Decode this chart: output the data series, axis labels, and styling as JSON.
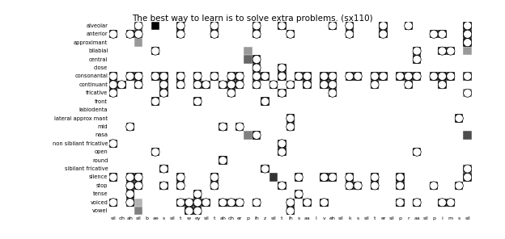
{
  "title": "The best way to learn is to solve extra problems. (sx110)",
  "rows": [
    "alveolar",
    "anterior",
    "approximant",
    "bilabial",
    "central",
    "close",
    "consonantal",
    "continuant",
    "fricative",
    "front",
    "labiodenta",
    "lateral approx mant",
    "mid",
    "nasa",
    "non sibilant fricative",
    "open",
    "round",
    "sibilant fricative",
    "silence",
    "stop",
    "tense",
    "voiced",
    "vowel"
  ],
  "cols": [
    "sil",
    "dh",
    "ah",
    "sil",
    "b",
    "ae",
    "s",
    "sil",
    "t",
    "w",
    "ey",
    "sil",
    "t",
    "ah",
    "dh",
    "er",
    "p",
    "ih",
    "z",
    "sil",
    "t",
    "ih",
    "s",
    "aa",
    "l",
    "v",
    "eh",
    "sil",
    "k",
    "s",
    "sil",
    "t",
    "er",
    "sil",
    "p",
    "r",
    "aa",
    "sil",
    "p",
    "i",
    "m",
    "s",
    "sil"
  ],
  "grid_data": [
    [
      0,
      0,
      0,
      0.7,
      0,
      1,
      0,
      0,
      1,
      0,
      0,
      0,
      1,
      0,
      0,
      0,
      0,
      1,
      0,
      0,
      1,
      0,
      0,
      0,
      0,
      0,
      1,
      0,
      1,
      0,
      0,
      0,
      1,
      0,
      0,
      1,
      0,
      0,
      0,
      0,
      0,
      0,
      1
    ],
    [
      1,
      0,
      1,
      0.9,
      0,
      0,
      0,
      0,
      1,
      0,
      0,
      0,
      1,
      0,
      0,
      0,
      0,
      1,
      0,
      0,
      0,
      1,
      0,
      0,
      0,
      0,
      0,
      0,
      1,
      0,
      0,
      0,
      1,
      0,
      0,
      0,
      0,
      0,
      1,
      1,
      0,
      0,
      1
    ],
    [
      0,
      0,
      0,
      0.4,
      0,
      0,
      0,
      0,
      0,
      0,
      0,
      0,
      0,
      0,
      0,
      0,
      0,
      0,
      0,
      0,
      0,
      0,
      0,
      0,
      0,
      0,
      0,
      0,
      0,
      0,
      0,
      0,
      0,
      0,
      0,
      0,
      0,
      0,
      0,
      0,
      0,
      0,
      1
    ],
    [
      0,
      0,
      0,
      0,
      0,
      1,
      0,
      0,
      0,
      0,
      0,
      0,
      0,
      0,
      0,
      0,
      0.4,
      0,
      0,
      0,
      0,
      0,
      0,
      0,
      0,
      0,
      0,
      0,
      0,
      0,
      0,
      0,
      0,
      0,
      0,
      0,
      1,
      0,
      0,
      1,
      1,
      0,
      0.4
    ],
    [
      0,
      0,
      0,
      0,
      0,
      0,
      0,
      0,
      0,
      0,
      0,
      0,
      0,
      0,
      0,
      0,
      0.6,
      1,
      0,
      0,
      0,
      0,
      0,
      0,
      0,
      0,
      0,
      0,
      0,
      0,
      0,
      0,
      0,
      0,
      0,
      0,
      1,
      0,
      0,
      0,
      0,
      0,
      0
    ],
    [
      0,
      0,
      0,
      0,
      0,
      0,
      0,
      0,
      0,
      0,
      0,
      0,
      0,
      0,
      0,
      0,
      0,
      1,
      0,
      0,
      1,
      0,
      0,
      0,
      0,
      0,
      0,
      0,
      0,
      0,
      0,
      0,
      0,
      0,
      0,
      0,
      0,
      0,
      0,
      0,
      0,
      0,
      0
    ],
    [
      1,
      0,
      1,
      1,
      0,
      1,
      1,
      0,
      1,
      0,
      1,
      0,
      1,
      0,
      1,
      1,
      0,
      1,
      1,
      0,
      1,
      0,
      1,
      1,
      0,
      1,
      1,
      0,
      1,
      1,
      0,
      1,
      1,
      0,
      1,
      1,
      1,
      0,
      1,
      1,
      1,
      0,
      0.8
    ],
    [
      1,
      1,
      0,
      1,
      0,
      0,
      1,
      0,
      1,
      0,
      1,
      1,
      0,
      1,
      1,
      1,
      0,
      1,
      0,
      1,
      0,
      1,
      0,
      1,
      0,
      1,
      1,
      0,
      0,
      0,
      0,
      1,
      0,
      0,
      0,
      1,
      0,
      0,
      0,
      1,
      0,
      0,
      0
    ],
    [
      1,
      0,
      0,
      0,
      0,
      0,
      1,
      0,
      0,
      0,
      0,
      0,
      0,
      0,
      1,
      0,
      0,
      0,
      0,
      0,
      1,
      0,
      0,
      0,
      0,
      0,
      1,
      0,
      0,
      0,
      0,
      0,
      0,
      0,
      0,
      0,
      0,
      0,
      0,
      0,
      0,
      0,
      0.5
    ],
    [
      0,
      0,
      0,
      0,
      0,
      1,
      0,
      0,
      0,
      0,
      1,
      0,
      0,
      0,
      0,
      0,
      0,
      0,
      1,
      0,
      0,
      0,
      0,
      0,
      0,
      0,
      0,
      0,
      0,
      0,
      0,
      0,
      0,
      0,
      0,
      0,
      0,
      0,
      0,
      0,
      0,
      0,
      0
    ],
    [
      0,
      0,
      0,
      0,
      0,
      0,
      0,
      0,
      0,
      0,
      0,
      0,
      0,
      0,
      0,
      0,
      0,
      0,
      0,
      0,
      0,
      0,
      0,
      0,
      0,
      0,
      0,
      0,
      0,
      0,
      0,
      0,
      0,
      0,
      0,
      0,
      0,
      0,
      0,
      0,
      0,
      0,
      0
    ],
    [
      0,
      0,
      0,
      0,
      0,
      0,
      0,
      0,
      0,
      0,
      0,
      0,
      0,
      0,
      0,
      0,
      0,
      0,
      0,
      0,
      0,
      1,
      0,
      0,
      0,
      0,
      0,
      0,
      0,
      0,
      0,
      0,
      0,
      0,
      0,
      0,
      0,
      0,
      0,
      0,
      0,
      1,
      0
    ],
    [
      0,
      0,
      1,
      0,
      0,
      0,
      0,
      0,
      0,
      0,
      0,
      0,
      0,
      1,
      0,
      1,
      0,
      0,
      0,
      0,
      0,
      1,
      0,
      0,
      0,
      0,
      0,
      0,
      0,
      0,
      0,
      0,
      0,
      0,
      0,
      0,
      0,
      0,
      0,
      0,
      0,
      0,
      0
    ],
    [
      0,
      0,
      0,
      0,
      0,
      0,
      0,
      0,
      0,
      0,
      0,
      0,
      0,
      0,
      0,
      0,
      0.5,
      1,
      0,
      0,
      0,
      0,
      0,
      0,
      0,
      0,
      0,
      0,
      0,
      0,
      0,
      0,
      0,
      0,
      0,
      0,
      0,
      0,
      0,
      0,
      0,
      0,
      0.7
    ],
    [
      1,
      0,
      0,
      0,
      0,
      0,
      0,
      0,
      0,
      0,
      0,
      0,
      0,
      0,
      0,
      0,
      0,
      0,
      0,
      0,
      1,
      0,
      0,
      0,
      0,
      0,
      0,
      0,
      0,
      0,
      0,
      0,
      0,
      0,
      0,
      0,
      0,
      0,
      0,
      0,
      0,
      0,
      0
    ],
    [
      0,
      0,
      0,
      0,
      0,
      1,
      0,
      0,
      0,
      0,
      0,
      0,
      0,
      0,
      0,
      0,
      0,
      0,
      0,
      0,
      1,
      0,
      0,
      0,
      0,
      0,
      0,
      0,
      0,
      0,
      0,
      0,
      0,
      0,
      0,
      0,
      1,
      0,
      0,
      0,
      0,
      0,
      0
    ],
    [
      0,
      0,
      0,
      0,
      0,
      0,
      0,
      0,
      0,
      0,
      0,
      0,
      0,
      1,
      0,
      0,
      0,
      0,
      0,
      0,
      0,
      0,
      0,
      0,
      0,
      0,
      0,
      0,
      0,
      0,
      0,
      0,
      0,
      0,
      0,
      0,
      0,
      0,
      0,
      0,
      0,
      0,
      0
    ],
    [
      0,
      0,
      0,
      0,
      0,
      0,
      1,
      0,
      0,
      0,
      0,
      0,
      0,
      0,
      0,
      0,
      0,
      0,
      1,
      0,
      0,
      0,
      0,
      0,
      0,
      0,
      0,
      0,
      0,
      0,
      0,
      0,
      0,
      0,
      0,
      0,
      0,
      0,
      0,
      0,
      0,
      0,
      0.8
    ],
    [
      1,
      0,
      1,
      1,
      0,
      0,
      0,
      0,
      1,
      0,
      0,
      0,
      1,
      0,
      0,
      0,
      0,
      0,
      0,
      0.8,
      0,
      0,
      1,
      0,
      0,
      1,
      1,
      0,
      1,
      0,
      0,
      1,
      0,
      0,
      1,
      0,
      0,
      0,
      0,
      0,
      0,
      0,
      0.9
    ],
    [
      0,
      0,
      1,
      1,
      0,
      0,
      1,
      0,
      1,
      0,
      0,
      0,
      1,
      0,
      0,
      0,
      0,
      0,
      0,
      0,
      1,
      0,
      0,
      0,
      0,
      0,
      0,
      0,
      1,
      1,
      0,
      1,
      0,
      0,
      1,
      0,
      0,
      0,
      1,
      0,
      0,
      1,
      0
    ],
    [
      0,
      0,
      1,
      0,
      0,
      0,
      0,
      0,
      0,
      0,
      1,
      0,
      0,
      0,
      0,
      0,
      0,
      0,
      0,
      0,
      0,
      0,
      1,
      0,
      0,
      0,
      0,
      0,
      0,
      0,
      0,
      0,
      0,
      0,
      0,
      0,
      0,
      0,
      0,
      0,
      0,
      0,
      0
    ],
    [
      1,
      0,
      1,
      0.3,
      0,
      0,
      0,
      0,
      1,
      1,
      1,
      1,
      0,
      1,
      1,
      1,
      0,
      1,
      0,
      0,
      0,
      1,
      0,
      1,
      0,
      1,
      0,
      0,
      0,
      0,
      0,
      0,
      0,
      0,
      1,
      0,
      1,
      0,
      0,
      1,
      1,
      0,
      0
    ],
    [
      0,
      0,
      0,
      0.5,
      0,
      0,
      0,
      0,
      0,
      1,
      1,
      0,
      0,
      0,
      0,
      0,
      0,
      0,
      0,
      0,
      0,
      1,
      0,
      0,
      0,
      0,
      0,
      0,
      0,
      0,
      0,
      0,
      0,
      0,
      0,
      0,
      0,
      0,
      0,
      0,
      0,
      0,
      0
    ]
  ],
  "circle_data": [
    [
      0,
      0,
      0,
      1,
      0,
      0,
      0,
      0,
      1,
      0,
      0,
      0,
      1,
      0,
      0,
      0,
      0,
      1,
      0,
      0,
      1,
      0,
      0,
      0,
      0,
      0,
      1,
      0,
      1,
      0,
      0,
      0,
      1,
      0,
      0,
      1,
      0,
      0,
      0,
      0,
      0,
      0,
      1
    ],
    [
      1,
      0,
      1,
      1,
      0,
      0,
      0,
      0,
      1,
      0,
      0,
      0,
      1,
      0,
      0,
      0,
      0,
      1,
      0,
      0,
      0,
      1,
      0,
      0,
      0,
      0,
      0,
      0,
      1,
      0,
      0,
      0,
      1,
      0,
      0,
      0,
      0,
      0,
      1,
      1,
      0,
      0,
      1
    ],
    [
      0,
      0,
      0,
      0,
      0,
      0,
      0,
      0,
      0,
      0,
      0,
      0,
      0,
      0,
      0,
      0,
      0,
      0,
      0,
      0,
      0,
      0,
      0,
      0,
      0,
      0,
      0,
      0,
      0,
      0,
      0,
      0,
      0,
      0,
      0,
      0,
      0,
      0,
      0,
      0,
      0,
      0,
      1
    ],
    [
      0,
      0,
      0,
      0,
      0,
      1,
      0,
      0,
      0,
      0,
      0,
      0,
      0,
      0,
      0,
      0,
      0,
      0,
      0,
      0,
      0,
      0,
      0,
      0,
      0,
      0,
      0,
      0,
      0,
      0,
      0,
      0,
      0,
      0,
      0,
      0,
      1,
      0,
      0,
      1,
      1,
      0,
      0
    ],
    [
      0,
      0,
      0,
      0,
      0,
      0,
      0,
      0,
      0,
      0,
      0,
      0,
      0,
      0,
      0,
      0,
      0,
      1,
      0,
      0,
      0,
      0,
      0,
      0,
      0,
      0,
      0,
      0,
      0,
      0,
      0,
      0,
      0,
      0,
      0,
      0,
      1,
      0,
      0,
      0,
      0,
      0,
      0
    ],
    [
      0,
      0,
      0,
      0,
      0,
      0,
      0,
      0,
      0,
      0,
      0,
      0,
      0,
      0,
      0,
      0,
      0,
      1,
      0,
      0,
      1,
      0,
      0,
      0,
      0,
      0,
      0,
      0,
      0,
      0,
      0,
      0,
      0,
      0,
      0,
      0,
      0,
      0,
      0,
      0,
      0,
      0,
      0
    ],
    [
      1,
      0,
      1,
      1,
      0,
      1,
      1,
      0,
      1,
      0,
      1,
      0,
      1,
      0,
      1,
      1,
      0,
      1,
      1,
      0,
      1,
      0,
      1,
      1,
      0,
      1,
      1,
      0,
      1,
      1,
      0,
      1,
      1,
      0,
      1,
      1,
      1,
      0,
      1,
      1,
      1,
      0,
      1
    ],
    [
      1,
      1,
      0,
      1,
      0,
      0,
      1,
      0,
      1,
      0,
      1,
      1,
      0,
      1,
      1,
      1,
      0,
      1,
      0,
      1,
      0,
      1,
      0,
      1,
      0,
      1,
      1,
      0,
      0,
      0,
      0,
      1,
      0,
      0,
      0,
      1,
      0,
      0,
      0,
      1,
      0,
      0,
      0
    ],
    [
      1,
      0,
      0,
      0,
      0,
      0,
      1,
      0,
      0,
      0,
      0,
      0,
      0,
      0,
      1,
      0,
      0,
      0,
      0,
      0,
      1,
      0,
      0,
      0,
      0,
      0,
      1,
      0,
      0,
      0,
      0,
      0,
      0,
      0,
      0,
      0,
      0,
      0,
      0,
      0,
      0,
      0,
      1
    ],
    [
      0,
      0,
      0,
      0,
      0,
      1,
      0,
      0,
      0,
      0,
      1,
      0,
      0,
      0,
      0,
      0,
      0,
      0,
      1,
      0,
      0,
      0,
      0,
      0,
      0,
      0,
      0,
      0,
      0,
      0,
      0,
      0,
      0,
      0,
      0,
      0,
      0,
      0,
      0,
      0,
      0,
      0,
      0
    ],
    [
      0,
      0,
      0,
      0,
      0,
      0,
      0,
      0,
      0,
      0,
      0,
      0,
      0,
      0,
      0,
      0,
      0,
      0,
      0,
      0,
      0,
      0,
      0,
      0,
      0,
      0,
      0,
      0,
      0,
      0,
      0,
      0,
      0,
      0,
      0,
      0,
      0,
      0,
      0,
      0,
      0,
      0,
      0
    ],
    [
      0,
      0,
      0,
      0,
      0,
      0,
      0,
      0,
      0,
      0,
      0,
      0,
      0,
      0,
      0,
      0,
      0,
      0,
      0,
      0,
      0,
      1,
      0,
      0,
      0,
      0,
      0,
      0,
      0,
      0,
      0,
      0,
      0,
      0,
      0,
      0,
      0,
      0,
      0,
      0,
      0,
      1,
      0
    ],
    [
      0,
      0,
      1,
      0,
      0,
      0,
      0,
      0,
      0,
      0,
      0,
      0,
      0,
      1,
      0,
      1,
      0,
      0,
      0,
      0,
      0,
      1,
      0,
      0,
      0,
      0,
      0,
      0,
      0,
      0,
      0,
      0,
      0,
      0,
      0,
      0,
      0,
      0,
      0,
      0,
      0,
      0,
      0
    ],
    [
      0,
      0,
      0,
      0,
      0,
      0,
      0,
      0,
      0,
      0,
      0,
      0,
      0,
      0,
      0,
      0,
      0,
      1,
      0,
      0,
      0,
      0,
      0,
      0,
      0,
      0,
      0,
      0,
      0,
      0,
      0,
      0,
      0,
      0,
      0,
      0,
      0,
      0,
      0,
      0,
      0,
      0,
      0
    ],
    [
      1,
      0,
      0,
      0,
      0,
      0,
      0,
      0,
      0,
      0,
      0,
      0,
      0,
      0,
      0,
      0,
      0,
      0,
      0,
      0,
      1,
      0,
      0,
      0,
      0,
      0,
      0,
      0,
      0,
      0,
      0,
      0,
      0,
      0,
      0,
      0,
      0,
      0,
      0,
      0,
      0,
      0,
      0
    ],
    [
      0,
      0,
      0,
      0,
      0,
      1,
      0,
      0,
      0,
      0,
      0,
      0,
      0,
      0,
      0,
      0,
      0,
      0,
      0,
      0,
      1,
      0,
      0,
      0,
      0,
      0,
      0,
      0,
      0,
      0,
      0,
      0,
      0,
      0,
      0,
      0,
      1,
      0,
      0,
      0,
      0,
      0,
      0
    ],
    [
      0,
      0,
      0,
      0,
      0,
      0,
      0,
      0,
      0,
      0,
      0,
      0,
      0,
      1,
      0,
      0,
      0,
      0,
      0,
      0,
      0,
      0,
      0,
      0,
      0,
      0,
      0,
      0,
      0,
      0,
      0,
      0,
      0,
      0,
      0,
      0,
      0,
      0,
      0,
      0,
      0,
      0,
      0
    ],
    [
      0,
      0,
      0,
      0,
      0,
      0,
      1,
      0,
      0,
      0,
      0,
      0,
      0,
      0,
      0,
      0,
      0,
      0,
      1,
      0,
      0,
      0,
      0,
      0,
      0,
      0,
      0,
      0,
      0,
      0,
      0,
      0,
      0,
      0,
      0,
      0,
      0,
      0,
      0,
      0,
      0,
      0,
      1
    ],
    [
      1,
      0,
      1,
      1,
      0,
      0,
      0,
      0,
      1,
      0,
      0,
      0,
      1,
      0,
      0,
      0,
      0,
      0,
      0,
      0,
      0,
      0,
      1,
      0,
      0,
      1,
      1,
      0,
      1,
      0,
      0,
      1,
      0,
      0,
      1,
      0,
      0,
      0,
      0,
      0,
      0,
      0,
      1
    ],
    [
      0,
      0,
      1,
      1,
      0,
      0,
      1,
      0,
      1,
      0,
      0,
      0,
      1,
      0,
      0,
      0,
      0,
      0,
      0,
      0,
      1,
      0,
      0,
      0,
      0,
      0,
      0,
      0,
      1,
      1,
      0,
      1,
      0,
      0,
      1,
      0,
      0,
      0,
      1,
      0,
      0,
      1,
      0
    ],
    [
      0,
      0,
      1,
      0,
      0,
      0,
      0,
      0,
      0,
      0,
      1,
      0,
      0,
      0,
      0,
      0,
      0,
      0,
      0,
      0,
      0,
      0,
      1,
      0,
      0,
      0,
      0,
      0,
      0,
      0,
      0,
      0,
      0,
      0,
      0,
      0,
      0,
      0,
      0,
      0,
      0,
      0,
      0
    ],
    [
      1,
      0,
      1,
      0,
      0,
      0,
      0,
      0,
      1,
      1,
      1,
      1,
      0,
      1,
      1,
      1,
      0,
      1,
      0,
      0,
      0,
      1,
      0,
      1,
      0,
      1,
      0,
      0,
      0,
      0,
      0,
      0,
      0,
      0,
      1,
      0,
      1,
      0,
      0,
      1,
      1,
      0,
      0
    ],
    [
      0,
      0,
      0,
      0,
      0,
      0,
      0,
      0,
      0,
      1,
      1,
      0,
      0,
      0,
      0,
      0,
      0,
      0,
      0,
      0,
      0,
      1,
      0,
      0,
      0,
      0,
      0,
      0,
      0,
      0,
      0,
      0,
      0,
      0,
      0,
      0,
      0,
      0,
      0,
      0,
      0,
      0,
      0
    ]
  ]
}
